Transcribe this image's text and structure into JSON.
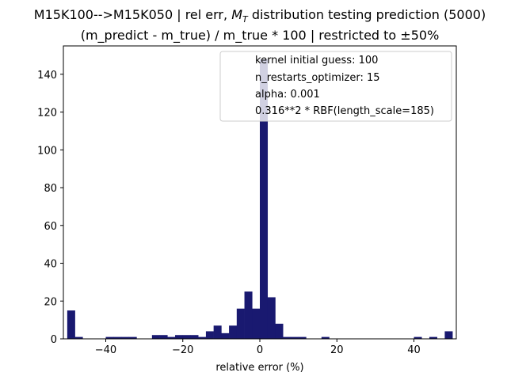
{
  "chart_data": {
    "type": "bar",
    "title_line1_prefix": "M15K100-->M15K050 | rel err, ",
    "title_line1_math": "M",
    "title_line1_math_sub": "T",
    "title_line1_suffix": " distribution testing prediction (5000)",
    "title_line2": "(m_predict - m_true) / m_true * 100 | restricted to ±50%",
    "xlabel": "relative error (%)",
    "ylabel": "",
    "xlim": [
      -51,
      51
    ],
    "ylim": [
      0,
      155
    ],
    "xticks": [
      -40,
      -20,
      0,
      20,
      40
    ],
    "xtick_labels": [
      "−40",
      "−20",
      "0",
      "20",
      "40"
    ],
    "yticks": [
      0,
      20,
      40,
      60,
      80,
      100,
      120,
      140
    ],
    "ytick_labels": [
      "0",
      "20",
      "40",
      "60",
      "80",
      "100",
      "120",
      "140"
    ],
    "bar_color": "#191970",
    "bin_width": 2,
    "bin_starts": [
      -50,
      -48,
      -46,
      -44,
      -42,
      -40,
      -38,
      -36,
      -34,
      -32,
      -30,
      -28,
      -26,
      -24,
      -22,
      -20,
      -18,
      -16,
      -14,
      -12,
      -10,
      -8,
      -6,
      -4,
      -2,
      0,
      2,
      4,
      6,
      8,
      10,
      12,
      14,
      16,
      18,
      20,
      22,
      24,
      26,
      28,
      30,
      32,
      34,
      36,
      38,
      40,
      42,
      44,
      46,
      48
    ],
    "values": [
      15,
      1,
      0,
      0,
      0,
      1,
      1,
      1,
      1,
      0,
      0,
      2,
      2,
      1,
      2,
      2,
      2,
      1,
      4,
      7,
      3,
      7,
      16,
      25,
      16,
      148,
      22,
      8,
      1,
      1,
      1,
      0,
      0,
      1,
      0,
      0,
      0,
      0,
      0,
      0,
      0,
      0,
      0,
      0,
      0,
      1,
      0,
      1,
      0,
      4
    ],
    "legend_location": "top-right",
    "legend_entries": [
      "kernel initial guess: 100",
      "n_restarts_optimizer: 15",
      "alpha: 0.001",
      "0.316**2 * RBF(length_scale=185)"
    ],
    "grid": false
  }
}
